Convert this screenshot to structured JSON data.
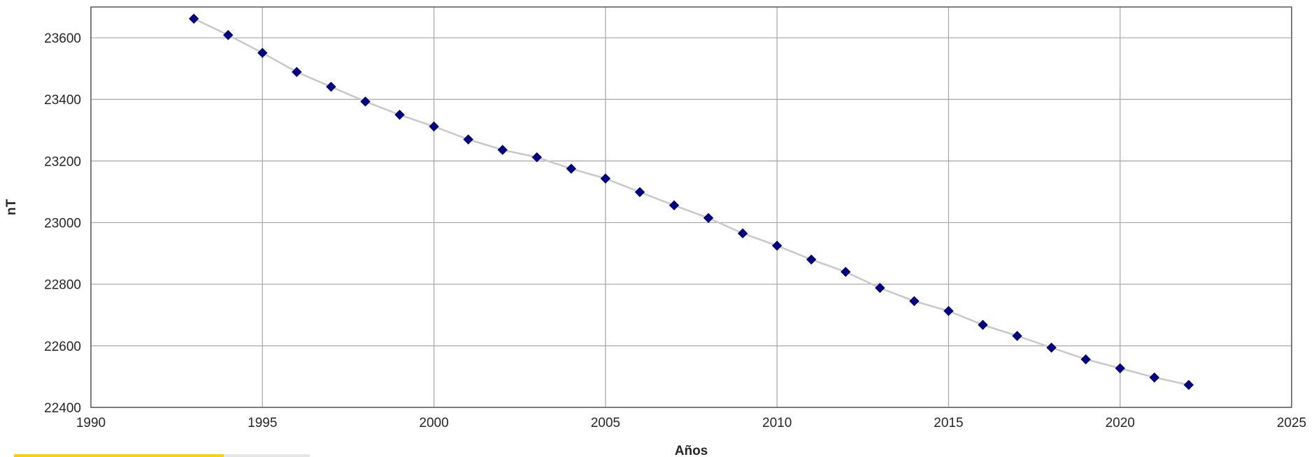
{
  "chart_data": {
    "type": "line",
    "title": "",
    "xlabel": "Años",
    "ylabel": "nT",
    "xlim": [
      1990,
      2025
    ],
    "ylim": [
      22400,
      23700
    ],
    "xticks": [
      1990,
      1995,
      2000,
      2005,
      2010,
      2015,
      2020,
      2025
    ],
    "yticks": [
      22400,
      22600,
      22800,
      23000,
      23200,
      23400,
      23600
    ],
    "grid": true,
    "legend": "none",
    "colors": {
      "marker": "#00007e",
      "line": "#c8c8c8",
      "grid": "#a6a6a6",
      "frame": "#595959"
    },
    "series": [
      {
        "x": [
          1993,
          1994,
          1995,
          1996,
          1997,
          1998,
          1999,
          2000,
          2001,
          2002,
          2003,
          2004,
          2005,
          2006,
          2007,
          2008,
          2009,
          2010,
          2011,
          2012,
          2013,
          2014,
          2015,
          2016,
          2017,
          2018,
          2019,
          2020,
          2021,
          2022
        ],
        "y": [
          23662,
          23609,
          23551,
          23489,
          23441,
          23393,
          23350,
          23312,
          23270,
          23236,
          23212,
          23175,
          23143,
          23099,
          23056,
          23015,
          22965,
          22925,
          22880,
          22840,
          22788,
          22745,
          22713,
          22668,
          22632,
          22594,
          22556,
          22527,
          22497,
          22473
        ]
      }
    ]
  },
  "progress": {
    "value": 0.71,
    "color": "#f5d20a"
  }
}
